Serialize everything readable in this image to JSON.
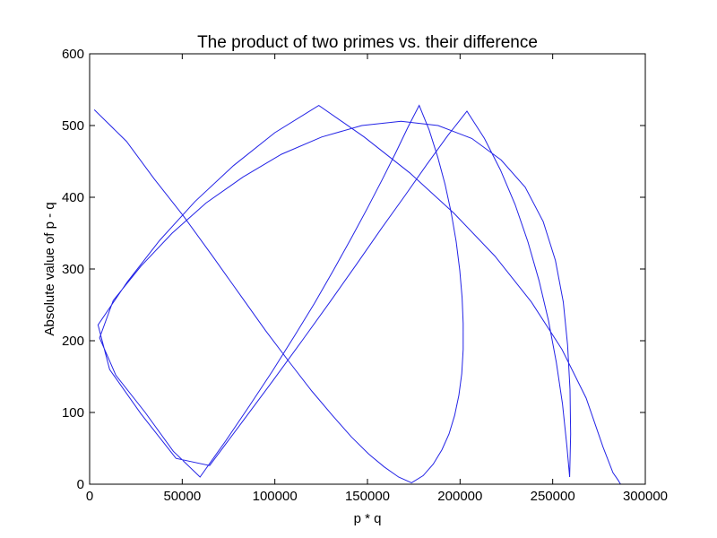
{
  "chart_data": {
    "type": "line",
    "title": "The product of two primes vs. their difference",
    "xlabel": "p * q",
    "ylabel": "Absolute value of p - q",
    "xlim": [
      0,
      300000
    ],
    "ylim": [
      0,
      600
    ],
    "xticks": [
      0,
      50000,
      100000,
      150000,
      200000,
      250000,
      300000
    ],
    "yticks": [
      0,
      100,
      200,
      300,
      400,
      500,
      600
    ],
    "grid": false,
    "legend": "none",
    "line_color": "#2323e6",
    "series": [
      {
        "x": [
          2501,
          19877,
          34753,
          50621,
          66341,
          81253,
          95051,
          107909,
          119911,
          131041,
          141283,
          150659,
          159101,
          166771,
          173819,
          180089,
          185531,
          190189,
          194033,
          197089,
          199369,
          200881,
          201689,
          201701,
          201119,
          199843,
          197923,
          195233,
          191923,
          187949,
          183287,
          177923,
          171929,
          165221,
          157859,
          149789,
          141047,
          131549,
          121353,
          110417,
          98777,
          86447,
          73373,
          59621,
          45149,
          29993,
          14141,
          5389,
          12709,
          27733,
          44573,
          62837,
          82687,
          103601,
          125263,
          146969,
          168169,
          188149,
          206333,
          222149,
          235169,
          244871,
          251491,
          255719,
          258061,
          259337,
          259717,
          259151,
          257707,
          255281,
          251959,
          247763,
          242621,
          236621,
          229709,
          221789,
          213167,
          203693,
          193367,
          182153,
          170201,
          157427,
          143969,
          129719,
          114659,
          98843,
          82169,
          64811,
          46661,
          27731,
          10789,
          4559,
          20329,
          37819,
          56869,
          77597,
          99977,
          123733,
          148243,
          172847,
          196613,
          218807,
          238511,
          255019,
          268049,
          277169,
          282553,
          285259,
          286651
        ],
        "y": [
          522,
          478,
          426,
          374,
          318,
          264,
          214,
          170,
          130,
          96,
          66,
          42,
          24,
          10,
          2,
          12,
          28,
          48,
          70,
          96,
          124,
          154,
          188,
          224,
          260,
          298,
          338,
          378,
          418,
          456,
          494,
          528,
          498,
          462,
          424,
          384,
          342,
          298,
          252,
          206,
          158,
          110,
          60,
          10,
          46,
          100,
          152,
          204,
          256,
          304,
          350,
          392,
          428,
          460,
          484,
          500,
          506,
          500,
          482,
          452,
          414,
          366,
          312,
          254,
          194,
          132,
          70,
          10,
          52,
          112,
          170,
          228,
          284,
          338,
          390,
          438,
          482,
          520,
          486,
          446,
          402,
          356,
          306,
          254,
          200,
          144,
          86,
          26,
          36,
          98,
          160,
          222,
          282,
          340,
          394,
          444,
          490,
          528,
          484,
          434,
          378,
          318,
          254,
          188,
          120,
          52,
          16,
          6,
          0
        ]
      }
    ]
  }
}
